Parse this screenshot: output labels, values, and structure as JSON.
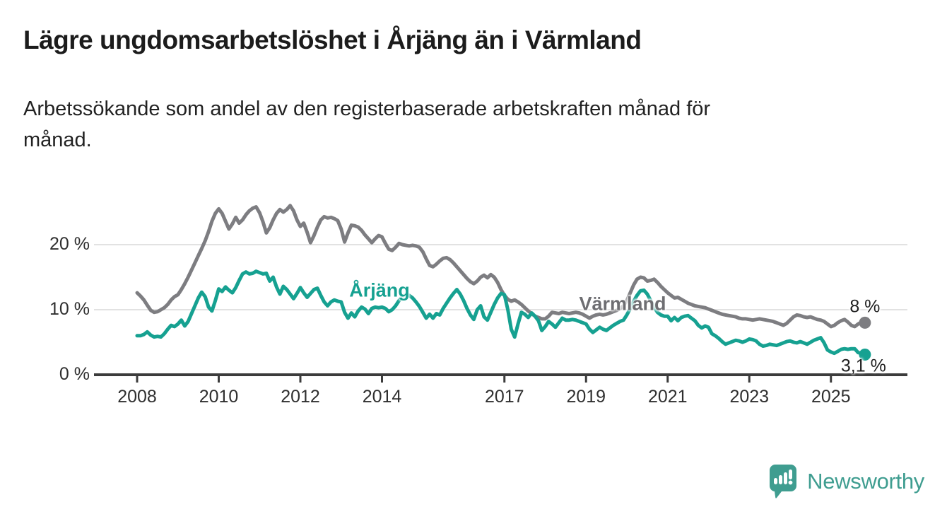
{
  "header": {
    "title": "Lägre ungdomsarbetslöshet i Årjäng än i Värmland",
    "subtitle_lines": [
      "Arbetssökande som andel av den registerbaserade arbetskraften månad för",
      "månad."
    ]
  },
  "chart_data": {
    "type": "line",
    "title": "Lägre ungdomsarbetslöshet i Årjäng än i Värmland",
    "subtitle": "Arbetssökande som andel av den registerbaserade arbetskraften månad för månad.",
    "unit": "%",
    "frequency": "monthly",
    "x_start": "2008-01",
    "x_end": "2025-11",
    "grid": "horizontal",
    "legend": "inline-labels",
    "ylim": [
      0,
      27.5
    ],
    "x_tick_years": [
      2008,
      2010,
      2012,
      2014,
      2017,
      2019,
      2021,
      2023,
      2025
    ],
    "x_tick_labels": [
      "2008",
      "2010",
      "2012",
      "2014",
      "2017",
      "2019",
      "2021",
      "2023",
      "2025"
    ],
    "y_ticks": [
      {
        "label": "0 %",
        "value": 0
      },
      {
        "label": "10 %",
        "value": 10
      },
      {
        "label": "20 %",
        "value": 20
      }
    ],
    "series": [
      {
        "name": "Värmland",
        "color": "#7d7d81",
        "label_color": "#6e6e72",
        "end_label": "8 %",
        "end_value": 8.0,
        "values": [
          12.6,
          12.1,
          11.5,
          10.7,
          9.9,
          9.6,
          9.7,
          10.0,
          10.3,
          10.8,
          11.5,
          12.0,
          12.3,
          13.1,
          14.0,
          15.0,
          16.1,
          17.2,
          18.3,
          19.4,
          20.6,
          22.0,
          23.6,
          24.8,
          25.5,
          24.8,
          23.6,
          22.4,
          23.2,
          24.2,
          23.3,
          23.8,
          24.6,
          25.2,
          25.6,
          25.8,
          24.9,
          23.5,
          21.8,
          22.6,
          23.8,
          24.8,
          25.4,
          25.0,
          25.4,
          26.0,
          25.2,
          23.8,
          22.8,
          23.3,
          21.9,
          20.3,
          21.4,
          22.7,
          23.8,
          24.3,
          24.1,
          24.2,
          24.0,
          23.7,
          22.4,
          20.4,
          21.8,
          23.0,
          22.9,
          22.7,
          22.2,
          21.5,
          20.9,
          20.3,
          20.9,
          21.4,
          21.2,
          20.2,
          19.3,
          19.1,
          19.6,
          20.2,
          20.0,
          19.9,
          19.8,
          19.9,
          19.8,
          19.6,
          18.9,
          17.8,
          16.8,
          16.6,
          17.0,
          17.5,
          17.9,
          18.0,
          17.7,
          17.2,
          16.6,
          16.0,
          15.4,
          14.8,
          14.3,
          14.0,
          14.4,
          15.0,
          15.3,
          14.9,
          15.4,
          15.0,
          14.2,
          13.1,
          12.2,
          11.6,
          11.3,
          11.5,
          11.2,
          10.8,
          10.3,
          9.8,
          9.4,
          9.0,
          8.8,
          8.6,
          8.6,
          9.0,
          9.6,
          9.5,
          9.4,
          9.6,
          9.5,
          9.4,
          9.5,
          9.6,
          9.5,
          9.3,
          9.0,
          8.7,
          9.0,
          9.2,
          9.3,
          9.2,
          9.3,
          9.5,
          9.7,
          9.9,
          10.2,
          10.6,
          11.4,
          12.6,
          13.8,
          14.7,
          15.0,
          14.9,
          14.4,
          14.5,
          14.7,
          14.2,
          13.6,
          13.1,
          12.6,
          12.2,
          11.8,
          11.9,
          11.6,
          11.3,
          11.0,
          10.8,
          10.6,
          10.5,
          10.4,
          10.3,
          10.1,
          9.9,
          9.7,
          9.5,
          9.3,
          9.2,
          9.1,
          9.0,
          8.9,
          8.7,
          8.6,
          8.6,
          8.5,
          8.4,
          8.5,
          8.6,
          8.5,
          8.4,
          8.3,
          8.2,
          8.0,
          7.8,
          7.6,
          7.9,
          8.4,
          8.9,
          9.2,
          9.1,
          8.9,
          8.8,
          8.9,
          8.7,
          8.5,
          8.4,
          8.2,
          7.8,
          7.4,
          7.6,
          8.0,
          8.3,
          8.5,
          8.1,
          7.6,
          7.4,
          7.8,
          8.1,
          8.0
        ]
      },
      {
        "name": "Årjäng",
        "color": "#16a191",
        "label_color": "#16a191",
        "end_label": "3,1 %",
        "end_value": 3.1,
        "values": [
          6.0,
          6.0,
          6.2,
          6.6,
          6.1,
          5.8,
          5.9,
          5.8,
          6.3,
          7.0,
          7.6,
          7.4,
          7.8,
          8.4,
          7.5,
          8.2,
          9.4,
          10.6,
          11.8,
          12.7,
          12.0,
          10.4,
          9.8,
          11.4,
          13.2,
          12.8,
          13.5,
          13.0,
          12.6,
          13.4,
          14.5,
          15.5,
          15.8,
          15.5,
          15.6,
          15.9,
          15.7,
          15.5,
          15.6,
          14.4,
          15.0,
          13.5,
          12.4,
          13.6,
          13.1,
          12.4,
          11.7,
          12.5,
          13.4,
          12.6,
          11.9,
          12.5,
          13.1,
          13.3,
          12.2,
          11.2,
          10.6,
          11.2,
          11.5,
          11.3,
          11.2,
          9.6,
          8.7,
          9.5,
          8.9,
          9.8,
          10.4,
          10.1,
          9.4,
          10.2,
          10.4,
          10.3,
          10.4,
          10.2,
          9.7,
          10.0,
          10.6,
          11.4,
          12.0,
          12.3,
          12.2,
          11.8,
          11.2,
          10.5,
          9.6,
          8.7,
          9.3,
          8.7,
          9.4,
          9.2,
          10.2,
          11.0,
          11.8,
          12.5,
          13.1,
          12.4,
          11.4,
          10.2,
          9.2,
          8.5,
          10.0,
          10.6,
          8.9,
          8.4,
          9.6,
          10.8,
          11.8,
          12.5,
          12.3,
          10.0,
          7.0,
          5.8,
          7.8,
          9.6,
          9.3,
          8.8,
          9.5,
          9.0,
          8.3,
          6.8,
          7.4,
          8.2,
          7.8,
          7.3,
          8.0,
          8.7,
          8.4,
          8.4,
          8.5,
          8.4,
          8.2,
          8.0,
          7.8,
          7.0,
          6.5,
          6.9,
          7.3,
          7.0,
          6.8,
          7.2,
          7.6,
          7.9,
          8.2,
          8.4,
          9.2,
          10.2,
          11.3,
          12.2,
          12.9,
          13.0,
          12.4,
          11.4,
          10.4,
          9.6,
          9.2,
          9.0,
          9.0,
          8.3,
          8.8,
          8.3,
          8.8,
          9.0,
          9.1,
          8.7,
          8.3,
          7.6,
          7.2,
          7.5,
          7.3,
          6.3,
          6.0,
          5.6,
          5.1,
          4.7,
          4.9,
          5.1,
          5.3,
          5.2,
          5.0,
          5.2,
          5.5,
          5.4,
          5.2,
          4.7,
          4.4,
          4.5,
          4.7,
          4.6,
          4.5,
          4.7,
          4.9,
          5.1,
          5.2,
          5.0,
          4.9,
          5.1,
          4.9,
          4.7,
          5.0,
          5.3,
          5.5,
          5.7,
          4.9,
          3.8,
          3.5,
          3.3,
          3.6,
          3.9,
          4.0,
          3.9,
          4.0,
          4.0,
          3.4,
          3.3,
          3.1
        ]
      }
    ],
    "colors": {
      "grid": "#d9d9d9",
      "axis": "#3c3c3c",
      "text": "#2f2f2f"
    }
  },
  "footer": {
    "brand": "Newsworthy",
    "brand_color": "#3f9d90"
  }
}
